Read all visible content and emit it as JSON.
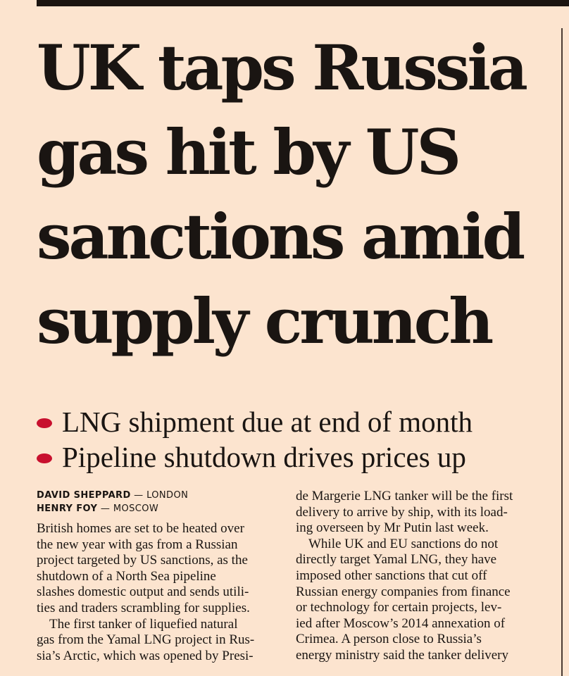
{
  "headline": {
    "lines": [
      "UK taps Russia",
      "gas hit by US",
      "sanctions amid",
      "supply crunch"
    ]
  },
  "bullets": [
    "LNG shipment due at end of month",
    "Pipeline shutdown drives prices up"
  ],
  "bylines": [
    {
      "author": "DAVID SHEPPARD",
      "sep": " — ",
      "location": "LONDON"
    },
    {
      "author": "HENRY FOY",
      "sep": " — ",
      "location": "MOSCOW"
    }
  ],
  "colors": {
    "paper": "#fce4cf",
    "bullet": "#c8102e",
    "ink": "#1a1512"
  },
  "body": {
    "left_lines": [
      "British homes are set to be heated over",
      "the new year with gas from a Russian",
      "project targeted by US sanctions, as the",
      "shutdown of a North Sea pipeline",
      "slashes domestic output and sends utili-",
      "ties and traders scrambling for supplies.",
      "The first tanker of liquefied natural",
      "gas from the Yamal LNG project in Rus-",
      "sia’s Arctic, which was opened by Presi-"
    ],
    "right_lines": [
      "de Margerie LNG tanker will be the first",
      "delivery to arrive by ship, with its load-",
      "ing overseen by Mr Putin last week.",
      "While UK and EU sanctions do not",
      "directly target Yamal LNG, they have",
      "imposed other sanctions that cut off",
      "Russian energy companies from finance",
      "or technology for certain projects, lev-",
      "ied after Moscow’s 2014 annexation of",
      "Crimea. A person close to Russia’s",
      "energy ministry said the tanker delivery"
    ]
  }
}
